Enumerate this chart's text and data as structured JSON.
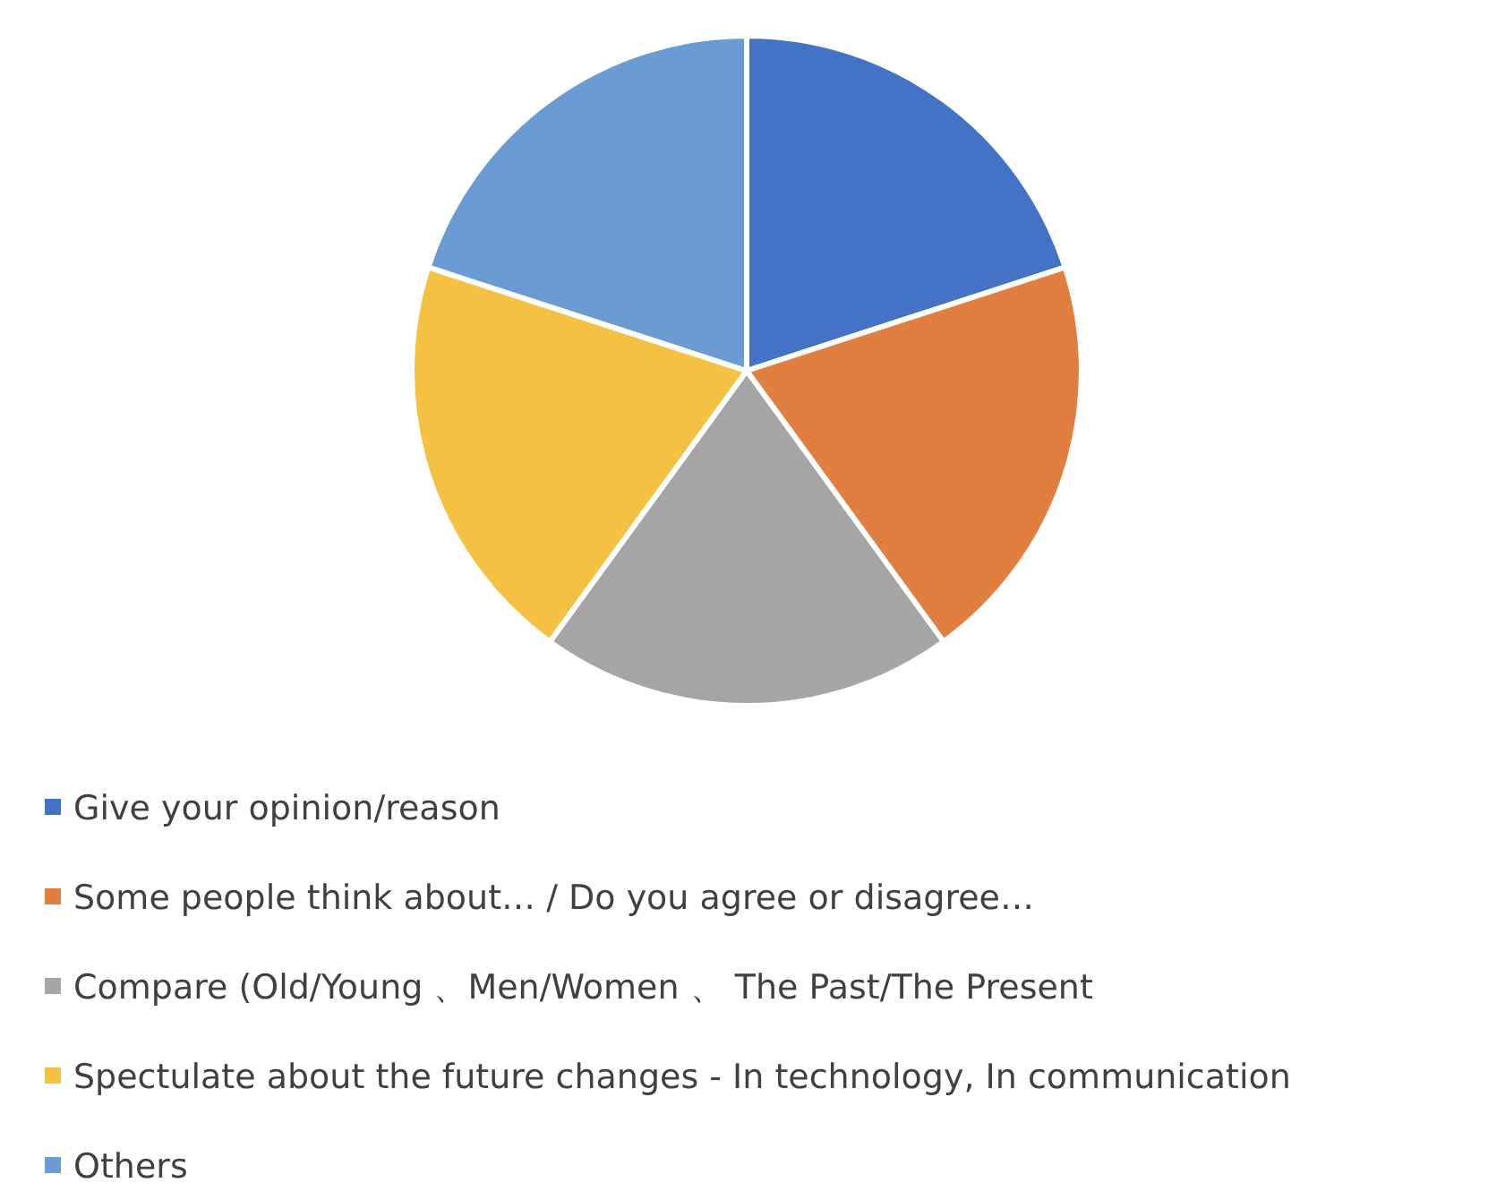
{
  "chart_data": {
    "type": "pie",
    "categories": [
      "Give your opinion/reason",
      "Some people think about… / Do you agree or disagree…",
      "Compare (Old/Young 、Men/Women 、 The Past/The Present",
      "Spectulate about the future changes - In technology, In communication",
      "Others"
    ],
    "values": [
      20,
      20,
      20,
      20,
      20
    ],
    "colors": [
      "#4472c4",
      "#e07f3f",
      "#a5a5a5",
      "#f4c142",
      "#6a9bd2"
    ],
    "legend": "bottom"
  }
}
